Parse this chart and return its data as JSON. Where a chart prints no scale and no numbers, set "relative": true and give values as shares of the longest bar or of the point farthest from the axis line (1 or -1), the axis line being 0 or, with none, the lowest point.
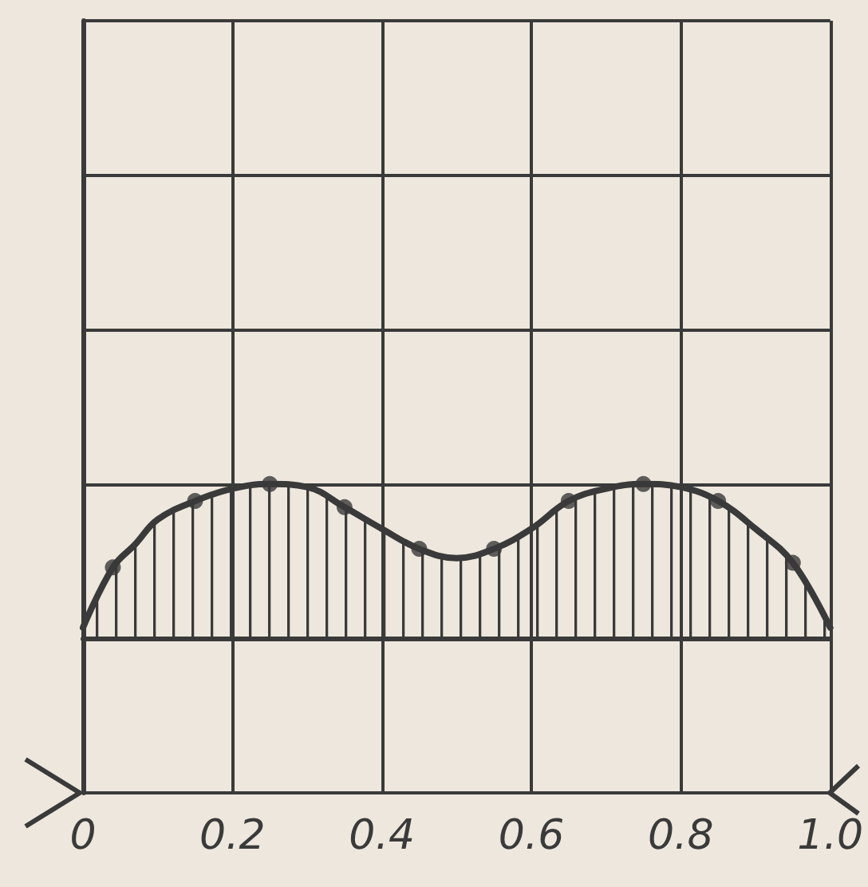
{
  "chart_data": {
    "type": "area",
    "relative": true,
    "xlim": [
      0,
      1
    ],
    "xticks": [
      0,
      0.2,
      0.4,
      0.6,
      0.8,
      {
        "value": 1,
        "label": "1.0"
      }
    ],
    "grid": true,
    "marker": "circle",
    "series": [
      {
        "marker": "none",
        "color": "#3a3a3a",
        "x": [
          0,
          0.04,
          0.07,
          0.1,
          0.15,
          0.2,
          0.25,
          0.3,
          0.35,
          0.4,
          0.45,
          0.5,
          0.55,
          0.6,
          0.65,
          0.7,
          0.75,
          0.8,
          0.85,
          0.9,
          0.95,
          1
        ],
        "values": [
          0.07,
          0.46,
          0.61,
          0.77,
          0.89,
          0.97,
          1,
          0.98,
          0.85,
          0.71,
          0.58,
          0.52,
          0.58,
          0.71,
          0.89,
          0.97,
          1,
          0.98,
          0.89,
          0.71,
          0.49,
          0.07
        ]
      },
      {
        "type": "scatter",
        "color": "#3a3a3a",
        "x": [
          0.04,
          0.15,
          0.25,
          0.35,
          0.45,
          0.55,
          0.65,
          0.75,
          0.85,
          0.95
        ],
        "values": [
          0.46,
          0.89,
          1,
          0.85,
          0.58,
          0.58,
          0.89,
          1,
          0.89,
          0.49
        ]
      }
    ]
  }
}
